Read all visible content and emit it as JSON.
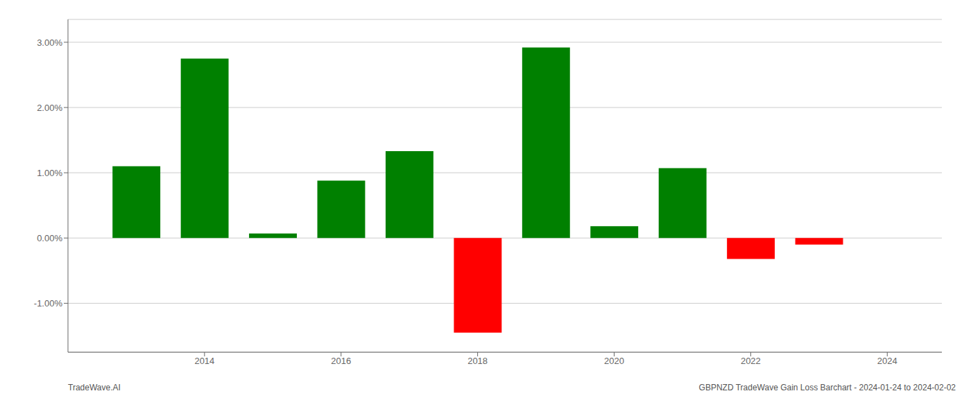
{
  "chart_data": {
    "type": "bar",
    "x": [
      2013,
      2014,
      2015,
      2016,
      2017,
      2018,
      2019,
      2020,
      2021,
      2022,
      2023
    ],
    "values": [
      1.1,
      2.75,
      0.07,
      0.88,
      1.33,
      -1.45,
      2.92,
      0.18,
      1.07,
      -0.32,
      -0.1
    ],
    "colors": [
      "#008000",
      "#008000",
      "#008000",
      "#008000",
      "#008000",
      "#ff0000",
      "#008000",
      "#008000",
      "#008000",
      "#ff0000",
      "#ff0000"
    ],
    "xlim": [
      2012.0,
      2024.8
    ],
    "ylim": [
      -1.75,
      3.35
    ],
    "xticks": [
      2014,
      2016,
      2018,
      2020,
      2022,
      2024
    ],
    "yticks": [
      {
        "value": -1.0,
        "label": "-1.00%"
      },
      {
        "value": 0.0,
        "label": "0.00%"
      },
      {
        "value": 1.0,
        "label": "1.00%"
      },
      {
        "value": 2.0,
        "label": "2.00%"
      },
      {
        "value": 3.0,
        "label": "3.00%"
      }
    ],
    "grid": true,
    "annotations": [
      "TradeWave.AI",
      "GBPNZD TradeWave Gain Loss Barchart - 2024-01-24 to 2024-02-02"
    ]
  }
}
